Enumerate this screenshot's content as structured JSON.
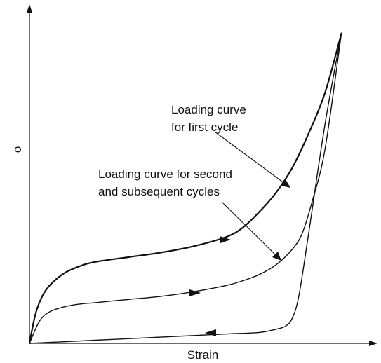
{
  "chart_data": {
    "type": "line",
    "title": "",
    "xlabel": "Strain",
    "ylabel": "σ",
    "grid": false,
    "series": [
      {
        "role": "loading-first-cycle",
        "x": [
          0.0,
          0.02,
          0.05,
          0.1,
          0.15,
          0.2,
          0.3,
          0.4,
          0.5,
          0.6,
          0.65,
          0.7,
          0.75,
          0.8,
          0.85,
          0.9,
          0.95
        ],
        "y": [
          0.0,
          0.1,
          0.17,
          0.22,
          0.245,
          0.26,
          0.275,
          0.29,
          0.31,
          0.34,
          0.37,
          0.42,
          0.48,
          0.56,
          0.67,
          0.8,
          0.99
        ]
      },
      {
        "role": "loading-second-cycle",
        "x": [
          0.0,
          0.03,
          0.06,
          0.1,
          0.15,
          0.2,
          0.3,
          0.4,
          0.5,
          0.6,
          0.65,
          0.7,
          0.75,
          0.8,
          0.83,
          0.86,
          0.9,
          0.95
        ],
        "y": [
          0.0,
          0.07,
          0.1,
          0.115,
          0.125,
          0.13,
          0.14,
          0.15,
          0.165,
          0.185,
          0.2,
          0.22,
          0.25,
          0.3,
          0.35,
          0.45,
          0.62,
          0.99
        ]
      },
      {
        "role": "unloading",
        "x": [
          0.95,
          0.9,
          0.85,
          0.82,
          0.8,
          0.78,
          0.75,
          0.7,
          0.6,
          0.5,
          0.4,
          0.3,
          0.2,
          0.1,
          0.0
        ],
        "y": [
          0.99,
          0.7,
          0.35,
          0.15,
          0.08,
          0.055,
          0.045,
          0.035,
          0.03,
          0.025,
          0.02,
          0.015,
          0.01,
          0.005,
          0.0
        ]
      }
    ],
    "annotations": {
      "first_cycle_line1": "Loading curve",
      "first_cycle_line2": "for first cycle",
      "second_cycle_line1": "Loading curve for second",
      "second_cycle_line2": "and subsequent cycles"
    }
  }
}
